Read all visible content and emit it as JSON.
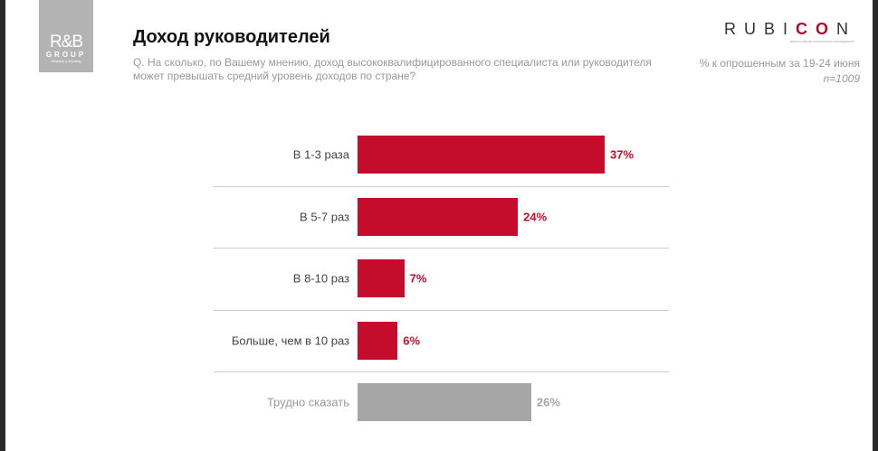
{
  "logo": {
    "line1": "R&B",
    "line2": "GROUP",
    "line3": "Research & Branding"
  },
  "header": {
    "title": "Доход руководителей",
    "question": "Q. На сколько, по Вашему мнению, доход высококвалифицированного специалиста или руководителя может превышать средний уровень доходов по стране?"
  },
  "brand": {
    "name_a": "RUBI",
    "name_b": "CO",
    "name_c": "N",
    "tagline": "всероссийские политические исследования"
  },
  "note": {
    "basis": "% к опрошенным за 19-24 июня",
    "n": "n=1009"
  },
  "chart_data": {
    "type": "bar",
    "orientation": "horizontal",
    "categories": [
      "В 1-3 раза",
      "В 5-7 раз",
      "В 8-10 раз",
      "Больше, чем в 10 раз",
      "Трудно сказать"
    ],
    "values": [
      37,
      24,
      7,
      6,
      26
    ],
    "labels": [
      "37%",
      "24%",
      "7%",
      "6%",
      "26%"
    ],
    "colors": [
      "#c60c2c",
      "#c60c2c",
      "#c60c2c",
      "#c60c2c",
      "#a6a6a6"
    ],
    "label_colors": [
      "#c60c2c",
      "#c60c2c",
      "#c60c2c",
      "#c60c2c",
      "#a6a6a6"
    ],
    "unit": "%",
    "xlim": [
      0,
      46
    ],
    "grid": false
  }
}
